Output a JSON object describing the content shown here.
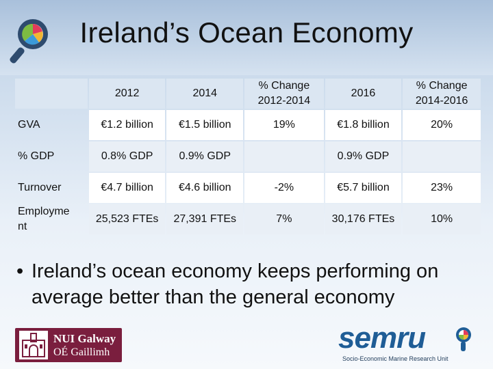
{
  "slide": {
    "title": "Ireland’s Ocean Economy",
    "bullet": "Ireland’s ocean economy keeps performing on average better than the general economy",
    "bullet_symbol": "•"
  },
  "table": {
    "headers": [
      "",
      "2012",
      "2014",
      "% Change 2012-2014",
      "2016",
      "% Change 2014-2016"
    ],
    "header_lines": {
      "change1_l1": "% Change",
      "change1_l2": "2012-2014",
      "change2_l1": "% Change",
      "change2_l2": "2014-2016"
    },
    "rows": [
      {
        "label": "GVA",
        "cells": [
          "€1.2 billion",
          "€1.5 billion",
          "19%",
          "€1.8 billion",
          "20%"
        ]
      },
      {
        "label": "% GDP",
        "cells": [
          "0.8% GDP",
          "0.9% GDP",
          "",
          "0.9% GDP",
          ""
        ]
      },
      {
        "label": "Turnover",
        "cells": [
          "€4.7 billion",
          "€4.6 billion",
          "-2%",
          "€5.7 billion",
          "23%"
        ]
      },
      {
        "label": "Employment",
        "label_l1": "Employme",
        "label_l2": "nt",
        "cells": [
          "25,523 FTEs",
          "27,391 FTEs",
          "7%",
          "30,176 FTEs",
          "10%"
        ]
      }
    ]
  },
  "logos": {
    "nui_line1": "NUI Galway",
    "nui_line2": "OÉ Gaillimh",
    "semru_word": "semru",
    "semru_sub": "Socio-Economic Marine Research Unit"
  },
  "colors": {
    "nui_maroon": "#7a1e3e",
    "semru_blue": "#1f5d96",
    "header_fill": "#dbe6f2"
  }
}
